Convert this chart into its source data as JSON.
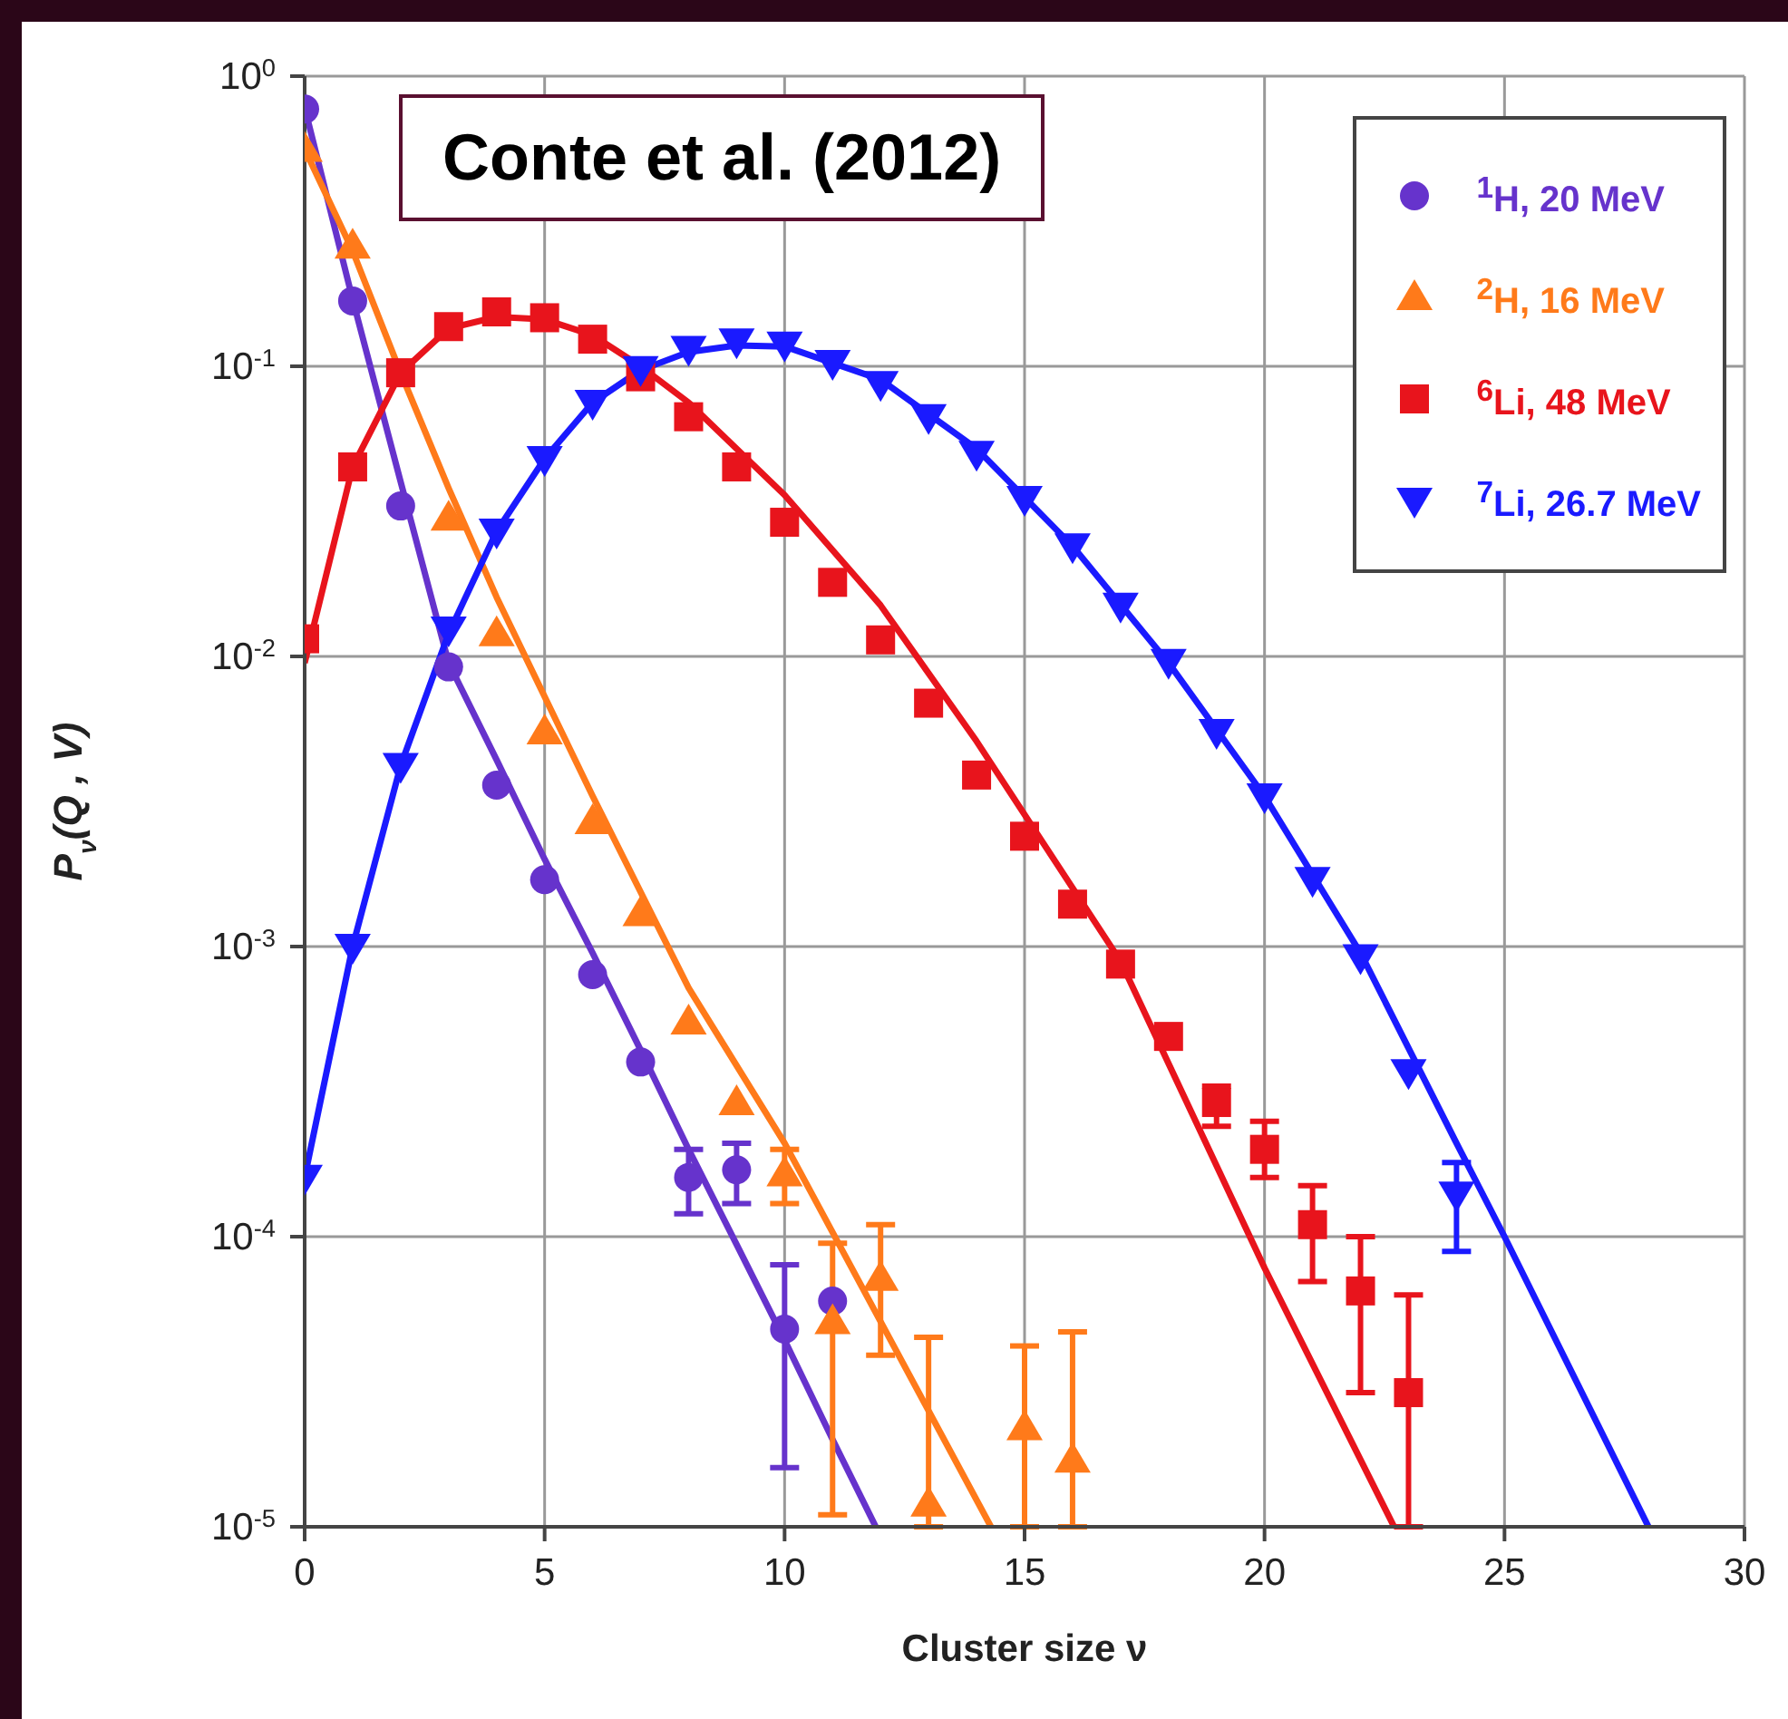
{
  "chart_data": {
    "type": "scatter",
    "xlabel": "Cluster size ν",
    "ylabel": "P$_{ν}$(Q , V)",
    "annotations": [
      "Conte et al. (2012)"
    ],
    "xlim": [
      0,
      30
    ],
    "xticks": [
      0,
      5,
      10,
      15,
      20,
      25,
      30
    ],
    "ylim": [
      1e-05,
      1
    ],
    "log": "y",
    "yticks": [
      {
        "value": 1e-05,
        "label": "10$^{-5}$"
      },
      {
        "value": 0.0001,
        "label": "10$^{-4}$"
      },
      {
        "value": 0.001,
        "label": "10$^{-3}$"
      },
      {
        "value": 0.01,
        "label": "10$^{-2}$"
      },
      {
        "value": 0.1,
        "label": "10$^{-1}$"
      },
      {
        "value": 1,
        "label": "10$^{0}$"
      }
    ],
    "grid": true,
    "legend": "top right",
    "series": [
      {
        "name": "$^{1}$H, 20 MeV",
        "color": "#6633cc",
        "marker": "circle",
        "x": [
          0,
          1,
          2,
          3,
          4,
          5,
          6,
          7,
          8,
          9,
          10,
          11
        ],
        "values": [
          0.77,
          0.168,
          0.033,
          0.0092,
          0.0036,
          0.0017,
          0.0008,
          0.0004,
          0.00016,
          0.00017,
          4.8e-05,
          6e-05
        ],
        "errors": [
          null,
          null,
          null,
          null,
          null,
          null,
          null,
          null,
          [
            0.00012,
            0.0002
          ],
          [
            0.00013,
            0.00021
          ],
          [
            1.6e-05,
            8e-05
          ],
          null
        ]
      },
      {
        "name": "$^{2}$H, 16 MeV",
        "color": "#ff7a1a",
        "marker": "triangle",
        "x": [
          0,
          1,
          2,
          3,
          4,
          5,
          6,
          7,
          8,
          9,
          10,
          11,
          12,
          13,
          15,
          16
        ],
        "values": [
          0.56,
          0.26,
          null,
          0.03,
          0.012,
          0.0055,
          0.0027,
          0.0013,
          0.00055,
          0.00029,
          0.000165,
          5.1e-05,
          7.2e-05,
          1.2e-05,
          2.2e-05,
          1.7e-05
        ],
        "errors": [
          null,
          null,
          null,
          null,
          null,
          null,
          null,
          null,
          null,
          null,
          [
            0.00013,
            0.0002
          ],
          [
            1.1e-05,
            9.5e-05
          ],
          [
            3.9e-05,
            0.00011
          ],
          [
            1e-05,
            4.5e-05
          ],
          [
            1e-05,
            4.2e-05
          ],
          [
            1e-05,
            4.7e-05
          ]
        ]
      },
      {
        "name": "$^{6}$Li, 48 MeV",
        "color": "#e8141c",
        "marker": "square",
        "x": [
          0,
          1,
          2,
          3,
          4,
          5,
          6,
          7,
          8,
          9,
          10,
          11,
          12,
          13,
          14,
          15,
          16,
          17,
          18,
          19,
          20,
          21,
          22,
          23
        ],
        "values": [
          0.0115,
          0.045,
          0.095,
          0.137,
          0.154,
          0.147,
          0.124,
          0.092,
          0.067,
          0.045,
          0.029,
          0.018,
          0.0114,
          0.0069,
          0.0039,
          0.0024,
          0.0014,
          0.00087,
          0.00049,
          0.00029,
          0.0002,
          0.00011,
          6.5e-05,
          2.9e-05
        ],
        "errors": [
          null,
          null,
          null,
          null,
          null,
          null,
          null,
          null,
          null,
          null,
          null,
          null,
          null,
          null,
          null,
          null,
          null,
          null,
          null,
          [
            0.00024,
            0.00033
          ],
          [
            0.00016,
            0.00025
          ],
          [
            7e-05,
            0.00015
          ],
          [
            2.9e-05,
            0.0001
          ],
          [
            1e-05,
            6.3e-05
          ]
        ]
      },
      {
        "name": "$^{7}$Li, 26.7 MeV",
        "color": "#1a1aff",
        "marker": "triangle-down",
        "x": [
          0,
          1,
          2,
          3,
          4,
          5,
          6,
          7,
          8,
          9,
          10,
          11,
          12,
          13,
          14,
          15,
          16,
          17,
          18,
          19,
          20,
          21,
          22,
          23,
          24
        ],
        "values": [
          0.00016,
          0.001,
          0.0042,
          0.0124,
          0.027,
          0.048,
          0.075,
          0.098,
          0.115,
          0.122,
          0.119,
          0.103,
          0.087,
          0.067,
          0.05,
          0.035,
          0.024,
          0.015,
          0.0096,
          0.0055,
          0.0033,
          0.0017,
          0.00092,
          0.00037,
          0.00014
        ],
        "errors": [
          null,
          null,
          null,
          null,
          null,
          null,
          null,
          null,
          null,
          null,
          null,
          null,
          null,
          null,
          null,
          null,
          null,
          null,
          null,
          null,
          null,
          null,
          null,
          null,
          [
            8.9e-05,
            0.00018
          ]
        ]
      },
      {
        "type": "line",
        "color": "#6633cc",
        "marker": "none",
        "x": [
          0,
          1,
          2,
          3,
          4,
          5,
          6,
          7,
          8,
          9,
          10,
          11,
          11.9
        ],
        "values": [
          0.78,
          0.17,
          0.04,
          0.0095,
          0.0044,
          0.002,
          0.00095,
          0.00044,
          0.0002,
          9.4e-05,
          4.4e-05,
          2e-05,
          1e-05
        ]
      },
      {
        "type": "line",
        "color": "#ff7a1a",
        "marker": "none",
        "x": [
          0,
          1,
          2,
          3,
          4,
          6,
          8,
          10,
          12,
          14.3
        ],
        "values": [
          0.56,
          0.25,
          0.095,
          0.038,
          0.016,
          0.0033,
          0.00072,
          0.00021,
          5.1e-05,
          1e-05
        ]
      },
      {
        "type": "line",
        "color": "#e8141c",
        "marker": "none",
        "x": [
          0,
          1,
          2,
          3,
          4,
          5,
          6,
          7,
          8,
          10,
          12,
          14,
          17,
          20,
          22.7
        ],
        "values": [
          0.0095,
          0.045,
          0.095,
          0.135,
          0.148,
          0.145,
          0.128,
          0.1,
          0.075,
          0.036,
          0.015,
          0.0051,
          0.00089,
          7.8e-05,
          1e-05
        ]
      },
      {
        "type": "line",
        "color": "#1a1aff",
        "marker": "none",
        "x": [
          0,
          1,
          2,
          3,
          4,
          5,
          6,
          7,
          8,
          9,
          10,
          12,
          14,
          16,
          18,
          20,
          22,
          24,
          25,
          28
        ],
        "values": [
          0.00016,
          0.001,
          0.0042,
          0.012,
          0.027,
          0.048,
          0.075,
          0.097,
          0.112,
          0.118,
          0.117,
          0.09,
          0.052,
          0.024,
          0.0095,
          0.0033,
          0.00095,
          0.00021,
          0.0001,
          1e-05
        ]
      }
    ]
  }
}
